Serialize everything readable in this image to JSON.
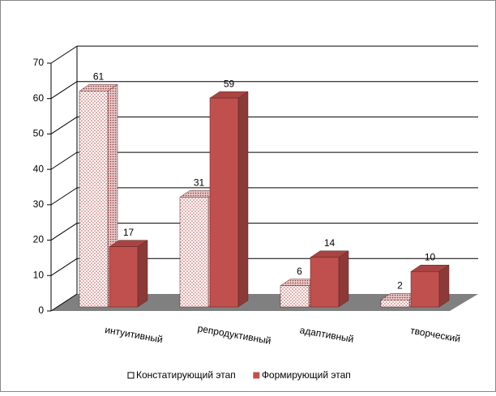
{
  "chart_data": {
    "type": "bar3d",
    "categories": [
      "интуитивный",
      "репродуктивный",
      "адаптивный",
      "творческий"
    ],
    "series": [
      {
        "name": "Констатирующий этап",
        "color": "#ffffff",
        "values": [
          61,
          31,
          6,
          2
        ]
      },
      {
        "name": "Формирующий этап",
        "color": "#c0504d",
        "values": [
          17,
          59,
          14,
          10
        ]
      }
    ],
    "ylim": [
      0,
      70
    ],
    "yticks": [
      0,
      10,
      20,
      30,
      40,
      50,
      60,
      70
    ],
    "grid": true,
    "legend": "bottom"
  }
}
